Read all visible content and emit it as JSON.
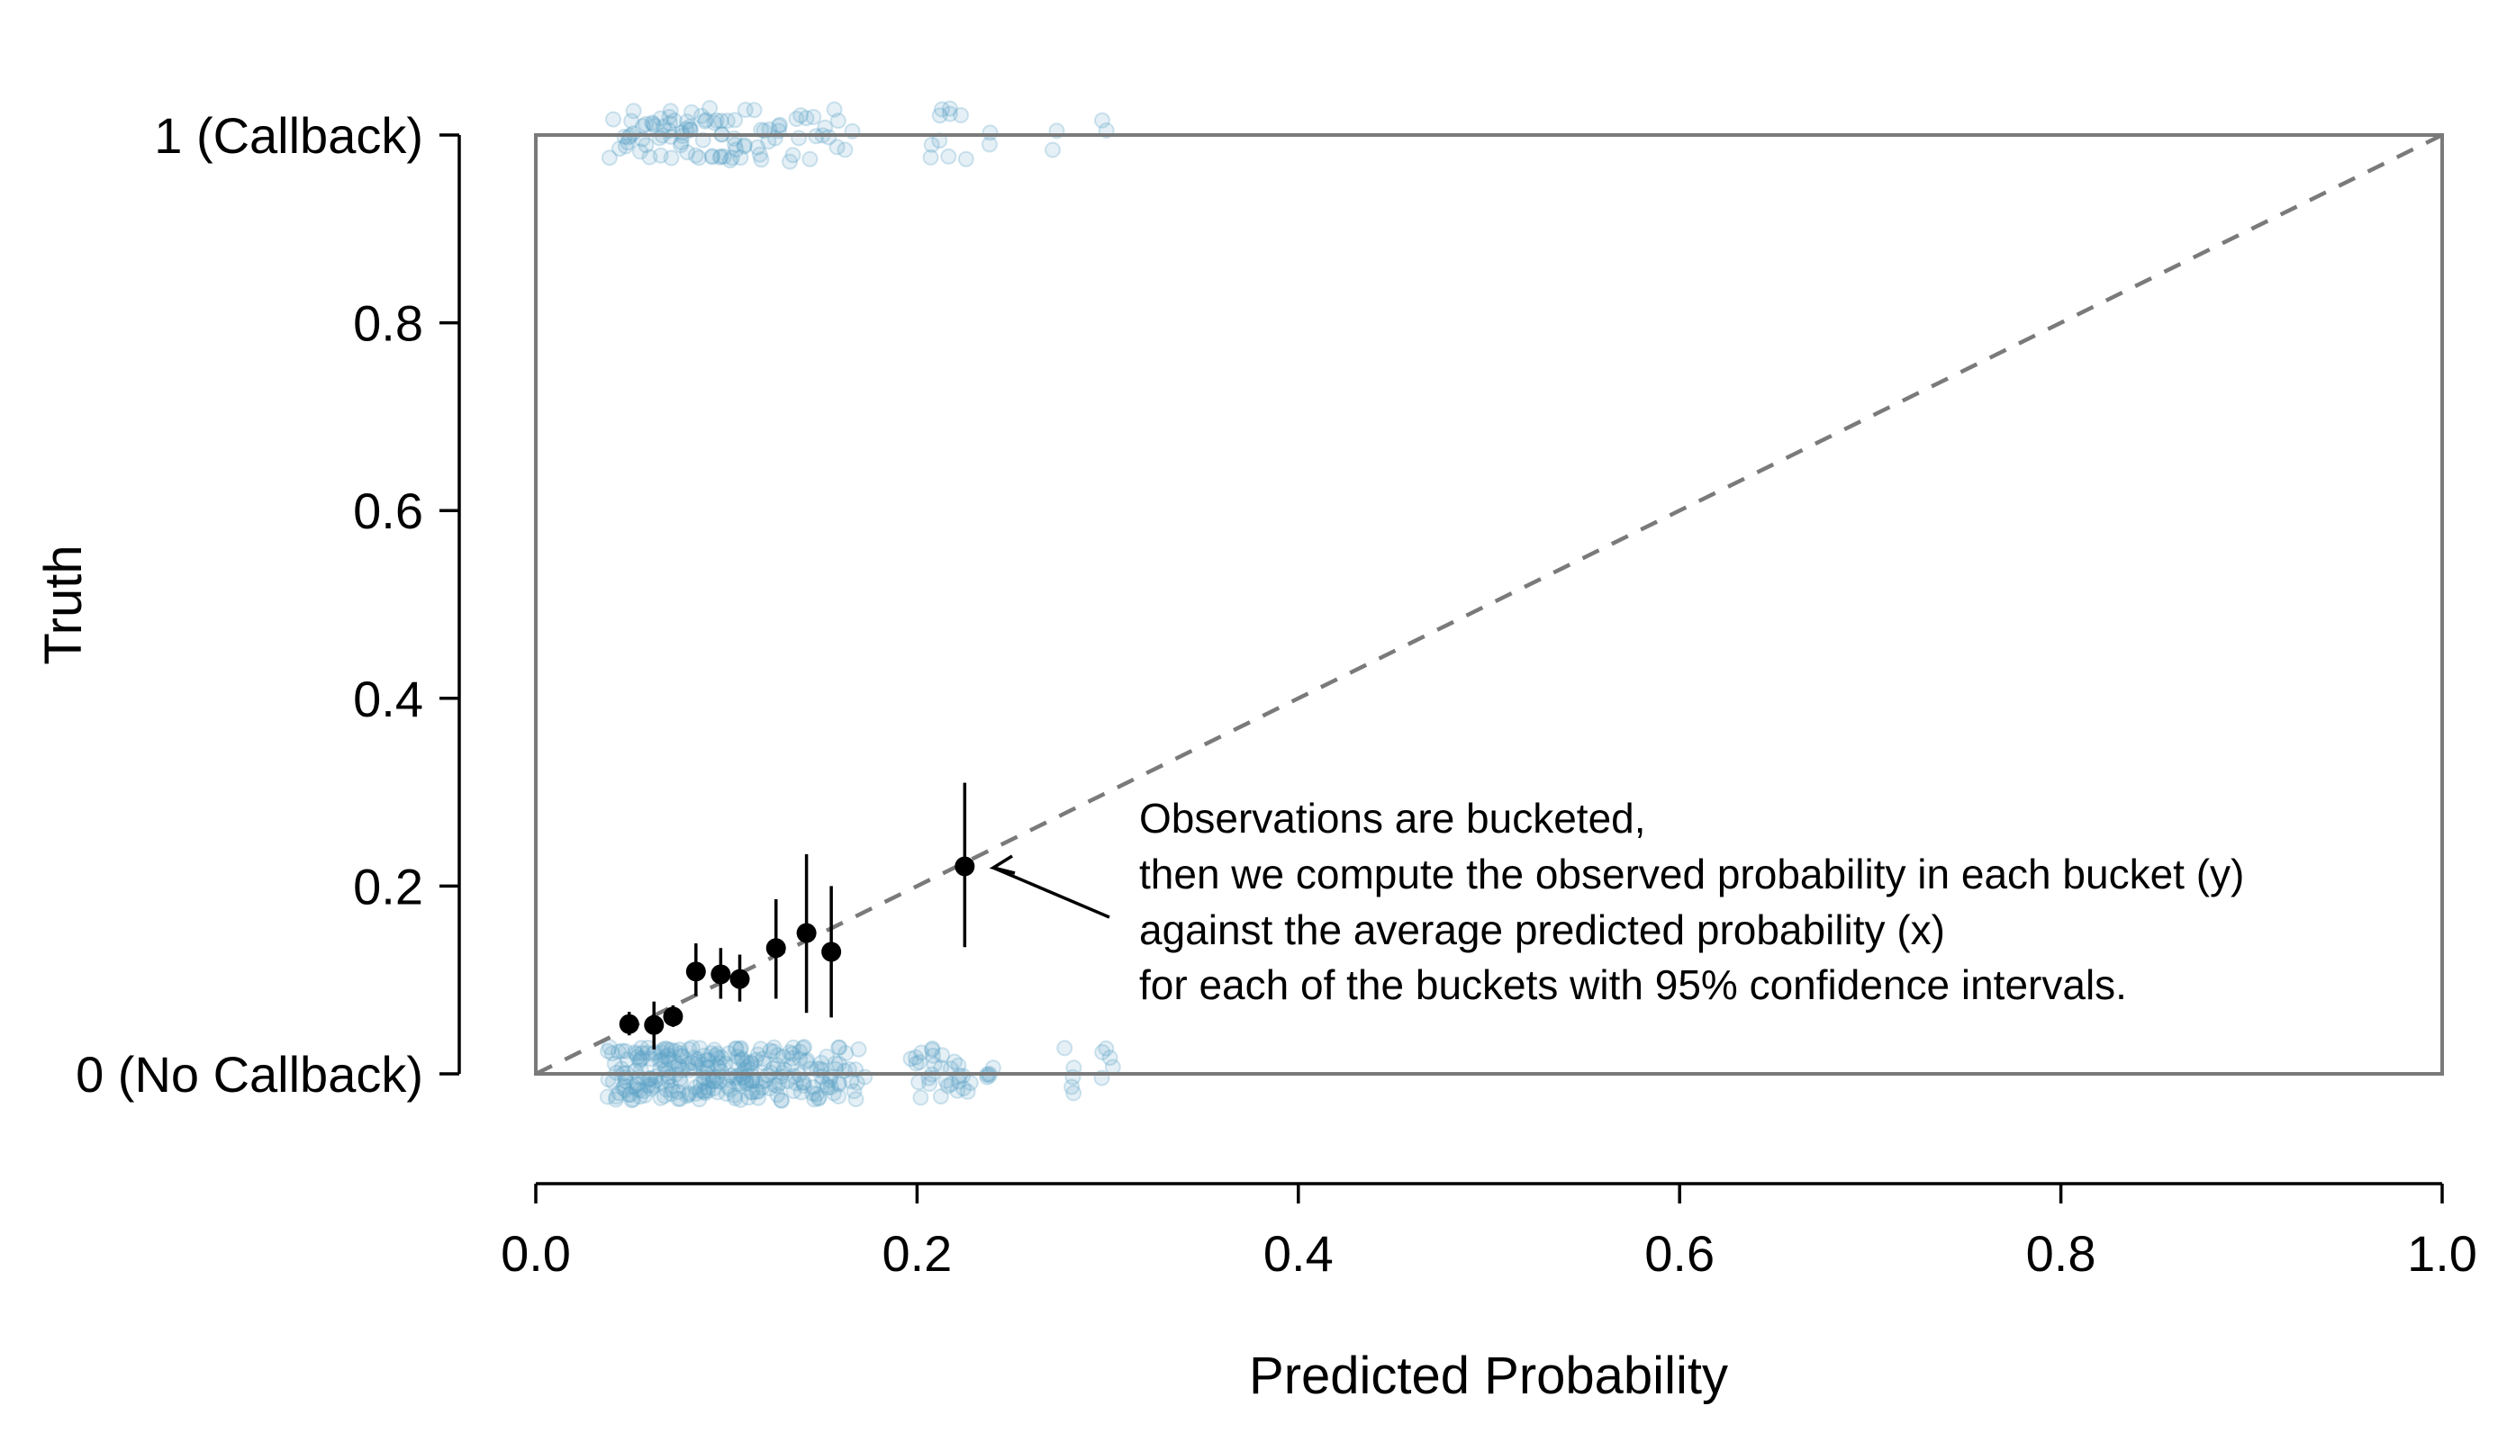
{
  "chart_data": {
    "type": "scatter",
    "title": "",
    "xlabel": "Predicted Probability",
    "ylabel": "Truth",
    "xlim": [
      0,
      1
    ],
    "ylim": [
      0,
      1
    ],
    "x_ticks": [
      {
        "value": 0.0,
        "label": "0.0"
      },
      {
        "value": 0.2,
        "label": "0.2"
      },
      {
        "value": 0.4,
        "label": "0.4"
      },
      {
        "value": 0.6,
        "label": "0.6"
      },
      {
        "value": 0.8,
        "label": "0.8"
      },
      {
        "value": 1.0,
        "label": "1.0"
      }
    ],
    "y_ticks": [
      {
        "value": 0.0,
        "label": "0 (No Callback)"
      },
      {
        "value": 0.2,
        "label": "0.2"
      },
      {
        "value": 0.4,
        "label": "0.4"
      },
      {
        "value": 0.6,
        "label": "0.6"
      },
      {
        "value": 0.8,
        "label": "0.8"
      },
      {
        "value": 1.0,
        "label": "1 (Callback)"
      }
    ],
    "reference_line": {
      "from": [
        0,
        0
      ],
      "to": [
        1,
        1
      ],
      "style": "dashed"
    },
    "grid": false,
    "colors": {
      "observations": "#5ba3c4",
      "buckets": "#000000",
      "reference": "#7a7a7a",
      "box": "#7a7a7a"
    },
    "observations_callback_x": [
      0.042,
      0.045,
      0.047,
      0.048,
      0.05,
      0.052,
      0.055,
      0.057,
      0.06,
      0.062,
      0.064,
      0.066,
      0.068,
      0.07,
      0.071,
      0.072,
      0.074,
      0.076,
      0.078,
      0.08,
      0.082,
      0.084,
      0.086,
      0.088,
      0.09,
      0.092,
      0.094,
      0.096,
      0.098,
      0.1,
      0.102,
      0.104,
      0.106,
      0.108,
      0.11,
      0.112,
      0.115,
      0.118,
      0.12,
      0.123,
      0.126,
      0.13,
      0.134,
      0.138,
      0.142,
      0.146,
      0.15,
      0.155,
      0.16,
      0.165,
      0.205,
      0.21,
      0.215,
      0.22,
      0.225,
      0.24,
      0.27,
      0.3
    ],
    "observations_no_callback_x": [
      0.04,
      0.042,
      0.044,
      0.046,
      0.048,
      0.05,
      0.052,
      0.054,
      0.056,
      0.058,
      0.06,
      0.062,
      0.064,
      0.066,
      0.068,
      0.07,
      0.072,
      0.074,
      0.076,
      0.078,
      0.08,
      0.082,
      0.084,
      0.086,
      0.088,
      0.09,
      0.092,
      0.094,
      0.096,
      0.098,
      0.1,
      0.102,
      0.104,
      0.106,
      0.108,
      0.11,
      0.112,
      0.114,
      0.116,
      0.118,
      0.12,
      0.123,
      0.126,
      0.129,
      0.132,
      0.135,
      0.138,
      0.141,
      0.144,
      0.147,
      0.15,
      0.153,
      0.156,
      0.16,
      0.165,
      0.17,
      0.2,
      0.205,
      0.21,
      0.215,
      0.22,
      0.225,
      0.24,
      0.28,
      0.3
    ],
    "buckets": [
      {
        "x": 0.049,
        "y": 0.053,
        "lower": 0.041,
        "upper": 0.066
      },
      {
        "x": 0.062,
        "y": 0.052,
        "lower": 0.026,
        "upper": 0.077
      },
      {
        "x": 0.072,
        "y": 0.061,
        "lower": 0.05,
        "upper": 0.073
      },
      {
        "x": 0.084,
        "y": 0.109,
        "lower": 0.083,
        "upper": 0.139
      },
      {
        "x": 0.097,
        "y": 0.106,
        "lower": 0.08,
        "upper": 0.134
      },
      {
        "x": 0.107,
        "y": 0.101,
        "lower": 0.077,
        "upper": 0.127
      },
      {
        "x": 0.126,
        "y": 0.134,
        "lower": 0.08,
        "upper": 0.186
      },
      {
        "x": 0.142,
        "y": 0.15,
        "lower": 0.065,
        "upper": 0.234
      },
      {
        "x": 0.155,
        "y": 0.13,
        "lower": 0.06,
        "upper": 0.2
      },
      {
        "x": 0.225,
        "y": 0.221,
        "lower": 0.135,
        "upper": 0.31
      }
    ],
    "annotation": {
      "lines": [
        "Observations are bucketed,",
        "then we compute the observed probability in each bucket (y)",
        "against the average predicted probability (x)",
        "for each of the buckets with 95% confidence intervals."
      ],
      "points_to_bucket": 9
    }
  }
}
